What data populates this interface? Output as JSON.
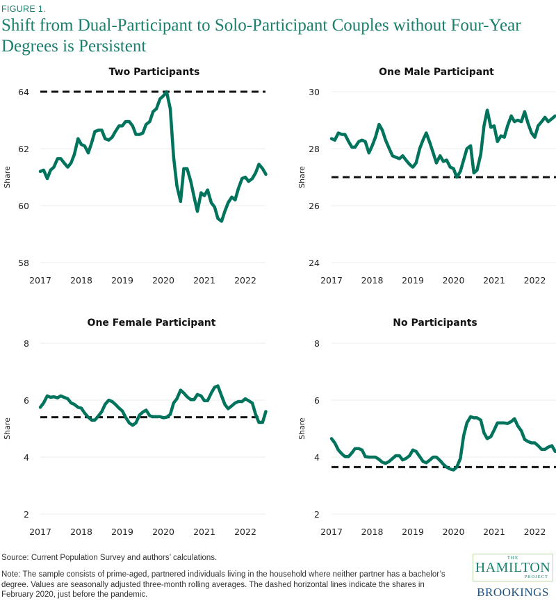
{
  "figure_label": "FIGURE 1.",
  "title": "Shift from Dual-Participant to Solo-Participant Couples without Four-Year Degrees is Persistent",
  "source": "Source: Current Population Survey and authors’ calculations.",
  "note": "Note: The sample consists of prime-aged, partnered individuals living in the household where neither partner has a bachelor’s degree. Values are seasonally adjusted three-month rolling averages. The dashed horizontal lines indicate the shares in February 2020, just before the pandemic.",
  "logo": {
    "the": "THE",
    "hamilton": "HAMILTON",
    "project": "PROJECT",
    "brookings": "BROOKINGS"
  },
  "colors": {
    "line": "#00735c",
    "reference": "#111111",
    "title": "#1b7f6e",
    "brookings": "#1e4f7c"
  },
  "chart_data": [
    {
      "type": "line",
      "title": "Two Participants",
      "xlabel": "",
      "ylabel": "Share",
      "ylim": [
        58,
        64
      ],
      "yticks": [
        58,
        60,
        62,
        64
      ],
      "xticks": [
        2017,
        2018,
        2019,
        2020,
        2021,
        2022
      ],
      "xlim": [
        2017,
        2022.5
      ],
      "grid": true,
      "reference_line": 64.0,
      "x": [
        2017.0,
        2017.08,
        2017.17,
        2017.25,
        2017.33,
        2017.42,
        2017.5,
        2017.58,
        2017.67,
        2017.75,
        2017.83,
        2017.92,
        2018.0,
        2018.08,
        2018.17,
        2018.25,
        2018.33,
        2018.42,
        2018.5,
        2018.58,
        2018.67,
        2018.75,
        2018.83,
        2018.92,
        2019.0,
        2019.08,
        2019.17,
        2019.25,
        2019.33,
        2019.42,
        2019.5,
        2019.58,
        2019.67,
        2019.75,
        2019.83,
        2019.92,
        2020.0,
        2020.08,
        2020.17,
        2020.25,
        2020.33,
        2020.42,
        2020.5,
        2020.58,
        2020.67,
        2020.75,
        2020.83,
        2020.92,
        2021.0,
        2021.08,
        2021.17,
        2021.25,
        2021.33,
        2021.42,
        2021.5,
        2021.58,
        2021.67,
        2021.75,
        2021.83,
        2021.92,
        2022.0,
        2022.08,
        2022.17,
        2022.25,
        2022.33,
        2022.42,
        2022.5
      ],
      "values": [
        61.2,
        61.25,
        60.95,
        61.25,
        61.35,
        61.65,
        61.65,
        61.5,
        61.35,
        61.5,
        61.8,
        62.35,
        62.15,
        62.1,
        61.85,
        62.2,
        62.6,
        62.65,
        62.65,
        62.35,
        62.3,
        62.4,
        62.6,
        62.8,
        62.8,
        62.95,
        62.95,
        62.8,
        62.5,
        62.5,
        62.55,
        62.85,
        62.95,
        63.3,
        63.4,
        63.75,
        63.85,
        64.0,
        63.4,
        61.7,
        60.7,
        60.15,
        61.3,
        61.3,
        60.85,
        60.3,
        59.8,
        60.45,
        60.35,
        60.55,
        60.1,
        59.95,
        59.55,
        59.45,
        59.8,
        60.1,
        60.3,
        60.2,
        60.6,
        60.95,
        61.0,
        60.85,
        60.95,
        61.15,
        61.45,
        61.3,
        61.1
      ]
    },
    {
      "type": "line",
      "title": "One Male Participant",
      "xlabel": "",
      "ylabel": "Share",
      "ylim": [
        24,
        30
      ],
      "yticks": [
        24,
        26,
        28,
        30
      ],
      "xticks": [
        2017,
        2018,
        2019,
        2020,
        2021,
        2022
      ],
      "xlim": [
        2017,
        2022.5
      ],
      "grid": true,
      "reference_line": 27.0,
      "x": [
        2017.0,
        2017.08,
        2017.17,
        2017.25,
        2017.33,
        2017.42,
        2017.5,
        2017.58,
        2017.67,
        2017.75,
        2017.83,
        2017.92,
        2018.0,
        2018.08,
        2018.17,
        2018.25,
        2018.33,
        2018.42,
        2018.5,
        2018.58,
        2018.67,
        2018.75,
        2018.83,
        2018.92,
        2019.0,
        2019.08,
        2019.17,
        2019.25,
        2019.33,
        2019.42,
        2019.5,
        2019.58,
        2019.67,
        2019.75,
        2019.83,
        2019.92,
        2020.0,
        2020.08,
        2020.17,
        2020.25,
        2020.33,
        2020.42,
        2020.5,
        2020.58,
        2020.67,
        2020.75,
        2020.83,
        2020.92,
        2021.0,
        2021.08,
        2021.17,
        2021.25,
        2021.33,
        2021.42,
        2021.5,
        2021.58,
        2021.67,
        2021.75,
        2021.83,
        2021.92,
        2022.0,
        2022.08,
        2022.17,
        2022.25,
        2022.33,
        2022.42,
        2022.5
      ],
      "values": [
        28.35,
        28.3,
        28.55,
        28.5,
        28.5,
        28.25,
        28.05,
        28.05,
        28.25,
        28.3,
        28.25,
        27.85,
        28.1,
        28.4,
        28.85,
        28.65,
        28.3,
        28.0,
        27.75,
        27.7,
        27.65,
        27.75,
        27.6,
        27.45,
        27.35,
        27.5,
        28.0,
        28.3,
        28.55,
        28.2,
        27.85,
        27.5,
        27.75,
        27.55,
        27.6,
        27.35,
        27.3,
        27.0,
        27.2,
        27.6,
        28.0,
        28.1,
        27.15,
        27.25,
        27.8,
        28.8,
        29.35,
        28.75,
        28.8,
        28.25,
        28.45,
        28.4,
        28.8,
        29.15,
        28.95,
        29.0,
        28.95,
        29.3,
        28.9,
        28.55,
        28.4,
        28.8,
        28.95,
        29.1,
        28.95,
        29.05,
        29.15
      ]
    },
    {
      "type": "line",
      "title": "One Female Participant",
      "xlabel": "",
      "ylabel": "Share",
      "ylim": [
        2,
        8
      ],
      "yticks": [
        2,
        4,
        6,
        8
      ],
      "xticks": [
        2017,
        2018,
        2019,
        2020,
        2021,
        2022
      ],
      "xlim": [
        2017,
        2022.5
      ],
      "grid": true,
      "reference_line": 5.4,
      "x": [
        2017.0,
        2017.08,
        2017.17,
        2017.25,
        2017.33,
        2017.42,
        2017.5,
        2017.58,
        2017.67,
        2017.75,
        2017.83,
        2017.92,
        2018.0,
        2018.08,
        2018.17,
        2018.25,
        2018.33,
        2018.42,
        2018.5,
        2018.58,
        2018.67,
        2018.75,
        2018.83,
        2018.92,
        2019.0,
        2019.08,
        2019.17,
        2019.25,
        2019.33,
        2019.42,
        2019.5,
        2019.58,
        2019.67,
        2019.75,
        2019.83,
        2019.92,
        2020.0,
        2020.08,
        2020.17,
        2020.25,
        2020.33,
        2020.42,
        2020.5,
        2020.58,
        2020.67,
        2020.75,
        2020.83,
        2020.92,
        2021.0,
        2021.08,
        2021.17,
        2021.25,
        2021.33,
        2021.42,
        2021.5,
        2021.58,
        2021.67,
        2021.75,
        2021.83,
        2021.92,
        2022.0,
        2022.08,
        2022.17,
        2022.25,
        2022.33,
        2022.42,
        2022.5
      ],
      "values": [
        5.75,
        5.9,
        6.15,
        6.1,
        6.12,
        6.08,
        6.15,
        6.1,
        6.05,
        5.9,
        5.85,
        5.75,
        5.72,
        5.55,
        5.4,
        5.3,
        5.3,
        5.45,
        5.6,
        5.85,
        6.0,
        5.95,
        5.85,
        5.72,
        5.62,
        5.4,
        5.2,
        5.12,
        5.2,
        5.48,
        5.58,
        5.65,
        5.45,
        5.42,
        5.42,
        5.42,
        5.38,
        5.4,
        5.5,
        5.9,
        6.05,
        6.35,
        6.25,
        6.12,
        6.02,
        6.02,
        6.2,
        6.15,
        5.98,
        5.98,
        6.25,
        6.45,
        6.5,
        6.15,
        5.85,
        5.7,
        5.8,
        5.9,
        5.95,
        5.95,
        6.05,
        5.98,
        5.9,
        5.5,
        5.22,
        5.22,
        5.6
      ]
    },
    {
      "type": "line",
      "title": "No Participants",
      "xlabel": "",
      "ylabel": "Share",
      "ylim": [
        2,
        8
      ],
      "yticks": [
        2,
        4,
        6,
        8
      ],
      "xticks": [
        2017,
        2018,
        2019,
        2020,
        2021,
        2022
      ],
      "xlim": [
        2017,
        2022.5
      ],
      "grid": true,
      "reference_line": 3.65,
      "x": [
        2017.0,
        2017.08,
        2017.17,
        2017.25,
        2017.33,
        2017.42,
        2017.5,
        2017.58,
        2017.67,
        2017.75,
        2017.83,
        2017.92,
        2018.0,
        2018.08,
        2018.17,
        2018.25,
        2018.33,
        2018.42,
        2018.5,
        2018.58,
        2018.67,
        2018.75,
        2018.83,
        2018.92,
        2019.0,
        2019.08,
        2019.17,
        2019.25,
        2019.33,
        2019.42,
        2019.5,
        2019.58,
        2019.67,
        2019.75,
        2019.83,
        2019.92,
        2020.0,
        2020.08,
        2020.17,
        2020.25,
        2020.33,
        2020.42,
        2020.5,
        2020.58,
        2020.67,
        2020.75,
        2020.83,
        2020.92,
        2021.0,
        2021.08,
        2021.17,
        2021.25,
        2021.33,
        2021.42,
        2021.5,
        2021.58,
        2021.67,
        2021.75,
        2021.83,
        2021.92,
        2022.0,
        2022.08,
        2022.17,
        2022.25,
        2022.33,
        2022.42,
        2022.5
      ],
      "values": [
        4.65,
        4.5,
        4.25,
        4.12,
        4.02,
        4.02,
        4.15,
        4.3,
        4.3,
        4.25,
        4.02,
        4.0,
        4.0,
        4.0,
        3.92,
        3.82,
        3.78,
        3.85,
        3.95,
        4.05,
        4.05,
        3.9,
        3.95,
        4.05,
        4.25,
        4.2,
        4.02,
        3.85,
        3.8,
        3.9,
        4.0,
        4.0,
        3.88,
        3.75,
        3.65,
        3.58,
        3.55,
        3.65,
        3.95,
        4.75,
        5.2,
        5.42,
        5.38,
        5.38,
        5.3,
        4.85,
        4.65,
        4.72,
        4.95,
        5.2,
        5.2,
        5.2,
        5.18,
        5.25,
        5.35,
        5.1,
        4.92,
        4.62,
        4.55,
        4.5,
        4.5,
        4.4,
        4.27,
        4.27,
        4.35,
        4.4,
        4.2
      ]
    }
  ]
}
